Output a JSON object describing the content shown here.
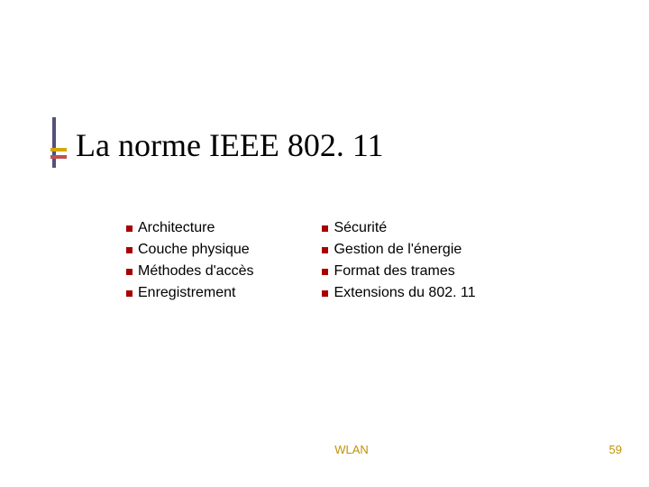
{
  "title": "La norme IEEE 802. 11",
  "colors": {
    "bullet": "#a80000",
    "title_text": "#000000",
    "body_text": "#000000",
    "footer_text": "#c29106",
    "marker_vertical": "#52527a",
    "marker_accent_1": "#d6a800",
    "marker_accent_2": "#c05050",
    "background": "#ffffff"
  },
  "typography": {
    "title_font": "Times New Roman",
    "title_size_pt": 28,
    "body_font": "Verdana",
    "body_size_pt": 12,
    "footer_size_pt": 10
  },
  "columns": {
    "left": [
      "Architecture",
      "Couche physique",
      "Méthodes d'accès",
      "Enregistrement"
    ],
    "right": [
      "Sécurité",
      "Gestion de l'énergie",
      "Format des trames",
      "Extensions du 802. 11"
    ]
  },
  "footer": {
    "label": "WLAN",
    "page_number": "59"
  }
}
